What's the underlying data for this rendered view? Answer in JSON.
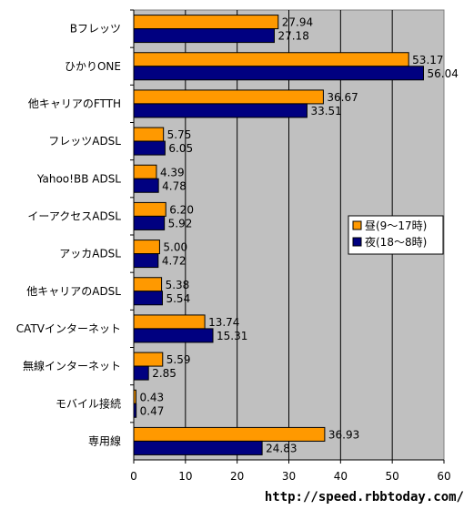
{
  "chart_data": {
    "type": "bar",
    "orientation": "horizontal",
    "categories": [
      "Bフレッツ",
      "ひかりONE",
      "他キャリアのFTTH",
      "フレッツADSL",
      "Yahoo!BB ADSL",
      "イーアクセスADSL",
      "アッカADSL",
      "他キャリアのADSL",
      "CATVインターネット",
      "無線インターネット",
      "モバイル接続",
      "専用線"
    ],
    "series": [
      {
        "name": "昼(9〜17時)",
        "color": "#ff9900",
        "values": [
          27.94,
          53.17,
          36.67,
          5.75,
          4.39,
          6.2,
          5.0,
          5.38,
          13.74,
          5.59,
          0.43,
          36.93
        ],
        "labels": [
          "27.94",
          "53.17",
          "36.67",
          "5.75",
          "4.39",
          "6.20",
          "5.00",
          "5.38",
          "13.74",
          "5.59",
          "0.43",
          "36.93"
        ]
      },
      {
        "name": "夜(18〜8時)",
        "color": "#000080",
        "values": [
          27.18,
          56.04,
          33.51,
          6.05,
          4.78,
          5.92,
          4.72,
          5.54,
          15.31,
          2.85,
          0.47,
          24.83
        ],
        "labels": [
          "27.18",
          "56.04",
          "33.51",
          "6.05",
          "4.78",
          "5.92",
          "4.72",
          "5.54",
          "15.31",
          "2.85",
          "0.47",
          "24.83"
        ]
      }
    ],
    "xlim": [
      0,
      60
    ],
    "xticks": [
      "0",
      "10",
      "20",
      "30",
      "40",
      "50",
      "60"
    ],
    "grid": true,
    "plot_background": "#c0c0c0",
    "legend_position": "right"
  },
  "footer": {
    "url": "http://speed.rbbtoday.com/"
  }
}
